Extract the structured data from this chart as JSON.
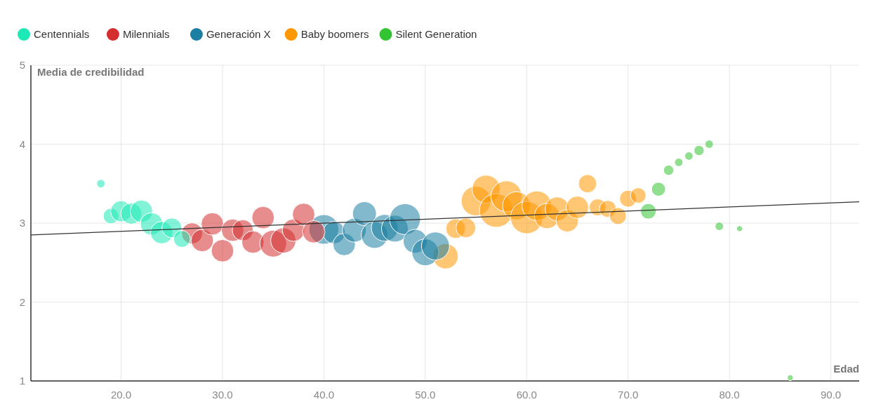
{
  "chart_data": {
    "type": "bubble",
    "xlabel": "Edad",
    "ylabel": "Media de credibilidad",
    "xlim": [
      11.1,
      92.8
    ],
    "ylim": [
      1,
      5
    ],
    "xticks": [
      {
        "value": 20,
        "label": "20.0"
      },
      {
        "value": 30,
        "label": "30.0"
      },
      {
        "value": 40,
        "label": "40.0"
      },
      {
        "value": 50,
        "label": "50.0"
      },
      {
        "value": 60,
        "label": "60.0"
      },
      {
        "value": 70,
        "label": "70.0"
      },
      {
        "value": 80,
        "label": "80.0"
      },
      {
        "value": 90,
        "label": "90.0"
      }
    ],
    "yticks": [
      1,
      2,
      3,
      4,
      5
    ],
    "grid": true,
    "legend": "top left",
    "series": [
      {
        "name": "Centennials",
        "color": "#1de9b6",
        "x": [
          18,
          19,
          20,
          21,
          22,
          23,
          24,
          25,
          26
        ],
        "values": [
          3.5,
          3.09,
          3.15,
          3.12,
          3.15,
          2.99,
          2.88,
          2.94,
          2.8
        ],
        "sizes": [
          0.06,
          0.21,
          0.39,
          0.39,
          0.44,
          0.44,
          0.44,
          0.34,
          0.25
        ]
      },
      {
        "name": "Milennials",
        "color": "#d32f2f",
        "x": [
          27,
          28,
          29,
          30,
          31,
          32,
          33,
          34,
          35,
          36,
          37,
          38,
          39
        ],
        "values": [
          2.87,
          2.78,
          2.99,
          2.65,
          2.91,
          2.91,
          2.76,
          3.07,
          2.74,
          2.78,
          2.91,
          3.11,
          2.89
        ],
        "sizes": [
          0.39,
          0.44,
          0.44,
          0.44,
          0.44,
          0.39,
          0.44,
          0.44,
          0.63,
          0.56,
          0.44,
          0.44,
          0.44
        ]
      },
      {
        "name": "Generación X",
        "color": "#1b7fa3",
        "x": [
          40,
          41,
          42,
          43,
          44,
          45,
          46,
          47,
          48,
          49,
          50,
          51
        ],
        "values": [
          2.92,
          2.88,
          2.73,
          2.91,
          3.12,
          2.85,
          2.94,
          2.93,
          3.05,
          2.77,
          2.63,
          2.71
        ],
        "sizes": [
          0.77,
          0.44,
          0.44,
          0.5,
          0.5,
          0.63,
          0.63,
          0.63,
          0.84,
          0.5,
          0.63,
          0.69
        ]
      },
      {
        "name": "Baby boomers",
        "color": "#ff9800",
        "x": [
          52,
          53,
          54,
          55,
          56,
          57,
          58,
          59,
          60,
          61,
          62,
          63,
          64,
          65,
          66,
          67,
          68,
          69,
          70,
          71
        ],
        "values": [
          2.58,
          2.93,
          2.94,
          3.28,
          3.43,
          3.16,
          3.34,
          3.22,
          3.07,
          3.22,
          3.09,
          3.18,
          3.03,
          3.2,
          3.5,
          3.2,
          3.18,
          3.09,
          3.31,
          3.35
        ],
        "sizes": [
          0.56,
          0.34,
          0.34,
          0.77,
          0.69,
          1,
          0.84,
          0.69,
          0.92,
          0.77,
          0.56,
          0.5,
          0.44,
          0.44,
          0.29,
          0.25,
          0.25,
          0.25,
          0.25,
          0.21
        ]
      },
      {
        "name": "Silent Generation",
        "color": "#33c433",
        "x": [
          72,
          73,
          74,
          75,
          76,
          77,
          78,
          79,
          81,
          86
        ],
        "values": [
          3.15,
          3.43,
          3.67,
          3.77,
          3.85,
          3.92,
          4.0,
          2.96,
          2.93,
          1.04
        ],
        "sizes": [
          0.21,
          0.17,
          0.09,
          0.06,
          0.06,
          0.09,
          0.06,
          0.06,
          0.03,
          0.03
        ]
      },
      {
        "type": "line",
        "color": "#333333",
        "x": [
          11.1,
          92.8
        ],
        "values": [
          2.85,
          3.27
        ]
      }
    ]
  }
}
